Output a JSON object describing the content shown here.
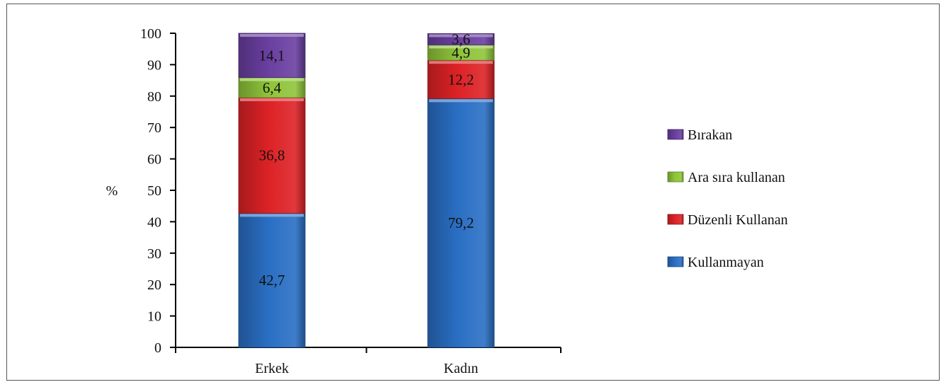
{
  "chart_data": {
    "type": "bar",
    "stacked": true,
    "categories": [
      "Erkek",
      "Kadın"
    ],
    "ylabel": "%",
    "xlabel": "",
    "ylim": [
      0,
      100
    ],
    "yticks": [
      0,
      10,
      20,
      30,
      40,
      50,
      60,
      70,
      80,
      90,
      100
    ],
    "series": [
      {
        "name": "Kullanmayan",
        "values": [
          42.7,
          79.2
        ],
        "labels": [
          "42,7",
          "79,2"
        ],
        "color": "#2a6fc4"
      },
      {
        "name": "Düzenli Kullanan",
        "values": [
          36.8,
          12.2
        ],
        "labels": [
          "36,8",
          "12,2"
        ],
        "color": "#dd2226"
      },
      {
        "name": "Ara sıra kullanan",
        "values": [
          6.4,
          4.9
        ],
        "labels": [
          "6,4",
          "4,9"
        ],
        "color": "#8fc43a"
      },
      {
        "name": "Bırakan",
        "values": [
          14.1,
          3.6
        ],
        "labels": [
          "14,1",
          "3,6"
        ],
        "color": "#6a3fa0"
      }
    ],
    "legend": {
      "position": "right",
      "order": [
        "Bırakan",
        "Ara sıra kullanan",
        "Düzenli Kullanan",
        "Kullanmayan"
      ]
    },
    "grid": false
  }
}
